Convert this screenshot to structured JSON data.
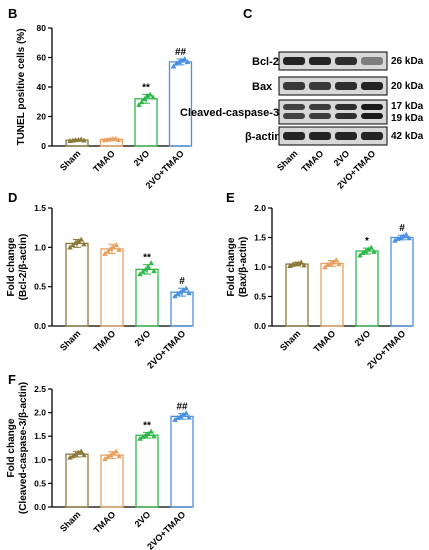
{
  "panels": {
    "B": "B",
    "C": "C",
    "D": "D",
    "E": "E",
    "F": "F"
  },
  "categories": [
    "Sham",
    "TMAO",
    "2VO",
    "2VO+TMAO"
  ],
  "colors": [
    "#8b7a3a",
    "#e8a060",
    "#2fb84a",
    "#4a90e2"
  ],
  "western_blot": {
    "labels": [
      "Bcl-2",
      "Bax",
      "Cleaved-caspase-3",
      "β-actin"
    ],
    "kda": [
      "26 kDa",
      "20 kDa",
      "17 kDa",
      "19 kDa",
      "42 kDa"
    ],
    "lanes": [
      "Sham",
      "TMAO",
      "2VO",
      "2VO+TMAO"
    ]
  },
  "chart_data": [
    {
      "id": "B",
      "type": "bar",
      "ylabel": "TUNEL positive cells (%)",
      "ylim": [
        0,
        80
      ],
      "yticks": [
        "0",
        "20",
        "40",
        "60",
        "80"
      ],
      "categories": [
        "Sham",
        "TMAO",
        "2VO",
        "2VO+TMAO"
      ],
      "values": [
        4,
        4.5,
        32,
        57
      ],
      "errors": [
        0.5,
        0.5,
        3,
        2
      ],
      "annotations": [
        "",
        "",
        "**",
        "##"
      ],
      "points": [
        [
          3.5,
          3.8,
          4.1,
          4.3,
          4.6,
          3.9
        ],
        [
          4,
          4.3,
          4.6,
          4.9,
          5,
          4.2
        ],
        [
          28,
          30,
          32,
          34,
          35,
          33
        ],
        [
          54,
          56,
          57,
          58,
          59,
          57
        ]
      ]
    },
    {
      "id": "D",
      "type": "bar",
      "ylabel_lines": [
        "Fold change",
        "(Bcl-2/β-actin)"
      ],
      "ylim": [
        0,
        1.5
      ],
      "yticks": [
        "0.0",
        "0.5",
        "1.0",
        "1.5"
      ],
      "categories": [
        "Sham",
        "TMAO",
        "2VO",
        "2VO+TMAO"
      ],
      "values": [
        1.05,
        0.98,
        0.72,
        0.43
      ],
      "errors": [
        0.05,
        0.06,
        0.06,
        0.05
      ],
      "annotations": [
        "",
        "",
        "**",
        "#"
      ],
      "points": [
        [
          1.0,
          1.03,
          1.06,
          1.08,
          1.1,
          1.04
        ],
        [
          0.92,
          0.95,
          0.98,
          1.0,
          1.03,
          0.97
        ],
        [
          0.66,
          0.69,
          0.72,
          0.75,
          0.8,
          0.7
        ],
        [
          0.38,
          0.41,
          0.43,
          0.45,
          0.48,
          0.42
        ]
      ]
    },
    {
      "id": "E",
      "type": "bar",
      "ylabel_lines": [
        "Fold change",
        "(Bax/β-actin)"
      ],
      "ylim": [
        0,
        2.0
      ],
      "yticks": [
        "0.0",
        "0.5",
        "1.0",
        "1.5",
        "2.0"
      ],
      "categories": [
        "Sham",
        "TMAO",
        "2VO",
        "2VO+TMAO"
      ],
      "values": [
        1.05,
        1.06,
        1.27,
        1.5
      ],
      "errors": [
        0.03,
        0.05,
        0.05,
        0.04
      ],
      "annotations": [
        "",
        "",
        "*",
        "#"
      ],
      "points": [
        [
          1.02,
          1.04,
          1.05,
          1.06,
          1.08,
          1.03
        ],
        [
          1.0,
          1.04,
          1.06,
          1.08,
          1.12,
          1.05
        ],
        [
          1.2,
          1.24,
          1.27,
          1.3,
          1.33,
          1.26
        ],
        [
          1.45,
          1.48,
          1.5,
          1.52,
          1.55,
          1.49
        ]
      ]
    },
    {
      "id": "F",
      "type": "bar",
      "ylabel_lines": [
        "Fold change",
        "(Cleaved-caspase-3/β-actin)"
      ],
      "ylim": [
        0,
        2.5
      ],
      "yticks": [
        "0.0",
        "0.5",
        "1.0",
        "1.5",
        "2.0",
        "2.5"
      ],
      "categories": [
        "Sham",
        "TMAO",
        "2VO",
        "2VO+TMAO"
      ],
      "values": [
        1.12,
        1.1,
        1.52,
        1.92
      ],
      "errors": [
        0.06,
        0.07,
        0.06,
        0.06
      ],
      "annotations": [
        "",
        "",
        "**",
        "##"
      ],
      "points": [
        [
          1.05,
          1.08,
          1.12,
          1.15,
          1.18,
          1.1
        ],
        [
          1.02,
          1.06,
          1.1,
          1.14,
          1.18,
          1.08
        ],
        [
          1.45,
          1.49,
          1.52,
          1.55,
          1.6,
          1.5
        ],
        [
          1.85,
          1.89,
          1.92,
          1.95,
          1.99,
          1.9
        ]
      ]
    }
  ]
}
